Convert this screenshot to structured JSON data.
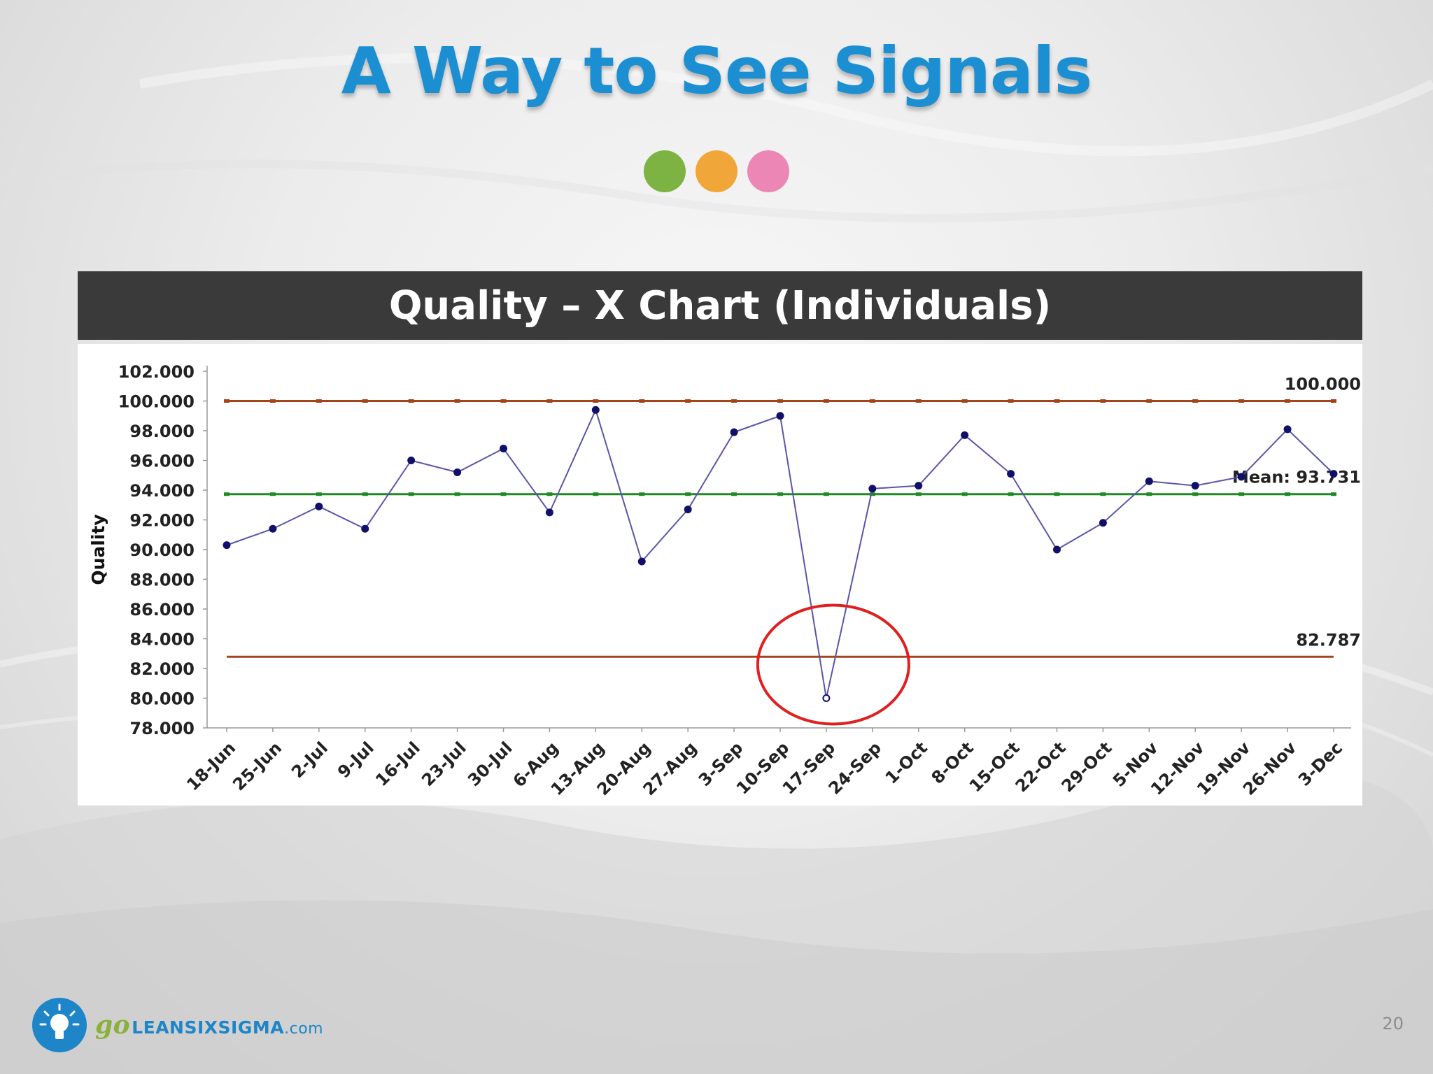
{
  "slide": {
    "title": "A Way to See Signals",
    "accent_dots": [
      {
        "color": "#7cb342"
      },
      {
        "color": "#f0a638"
      },
      {
        "color": "#ec87b5"
      }
    ],
    "chart_header": "Quality – X Chart (Individuals)",
    "page_number": "20",
    "logo": {
      "go": "go",
      "name": "LEANSIXSIGMA",
      "suffix": ".com"
    }
  },
  "chart_data": {
    "type": "line",
    "title": "Quality – X Chart (Individuals)",
    "xlabel": "",
    "ylabel": "Quality",
    "ylim": [
      78,
      102
    ],
    "yticks": [
      "78.000",
      "80.000",
      "82.000",
      "84.000",
      "86.000",
      "88.000",
      "90.000",
      "92.000",
      "94.000",
      "96.000",
      "98.000",
      "100.000",
      "102.000"
    ],
    "ytick_values": [
      78,
      80,
      82,
      84,
      86,
      88,
      90,
      92,
      94,
      96,
      98,
      100,
      102
    ],
    "categories": [
      "18-Jun",
      "25-Jun",
      "2-Jul",
      "9-Jul",
      "16-Jul",
      "23-Jul",
      "30-Jul",
      "6-Aug",
      "13-Aug",
      "20-Aug",
      "27-Aug",
      "3-Sep",
      "10-Sep",
      "17-Sep",
      "24-Sep",
      "1-Oct",
      "8-Oct",
      "15-Oct",
      "22-Oct",
      "29-Oct",
      "5-Nov",
      "12-Nov",
      "19-Nov",
      "26-Nov",
      "3-Dec"
    ],
    "series": [
      {
        "values": [
          90.3,
          91.4,
          92.9,
          91.4,
          96.0,
          95.2,
          96.8,
          92.5,
          99.4,
          89.2,
          92.7,
          97.9,
          99.0,
          80.0,
          94.1,
          94.3,
          97.7,
          95.1,
          90.0,
          91.8,
          94.6,
          94.3,
          94.9,
          98.1,
          95.1
        ],
        "color": "#5a55a8",
        "marker_color": "#10106a"
      }
    ],
    "signal_point_index": 13,
    "reference_lines": [
      {
        "value": 100.0,
        "label": "100.000",
        "color": "#a3441b"
      },
      {
        "value": 93.731,
        "label": "Mean: 93.731",
        "color": "#1f8a22"
      },
      {
        "value": 82.787,
        "label": "82.787",
        "color": "#a3441b"
      }
    ],
    "highlight": {
      "color": "#e02020",
      "around": "17-Sep"
    },
    "grid": false,
    "legend": "none"
  }
}
